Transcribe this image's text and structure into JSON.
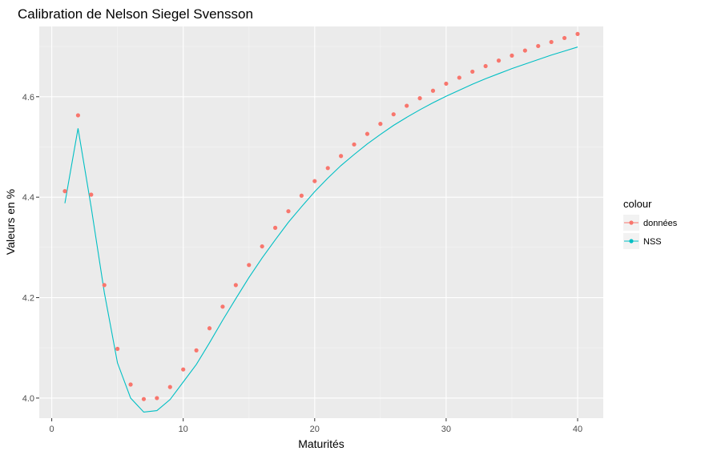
{
  "chart_data": {
    "type": "line",
    "title": "Calibration de Nelson Siegel Svensson",
    "xlabel": "Maturités",
    "ylabel": "Valeurs en %",
    "xlim": [
      -0.95,
      41.95
    ],
    "ylim": [
      3.96,
      4.74
    ],
    "x_ticks": [
      0,
      10,
      20,
      30,
      40
    ],
    "x_tick_labels": [
      "0",
      "10",
      "20",
      "30",
      "40"
    ],
    "y_ticks": [
      4.0,
      4.2,
      4.4,
      4.6
    ],
    "y_tick_labels": [
      "4.0",
      "4.2",
      "4.4",
      "4.6"
    ],
    "grid": true,
    "legend": {
      "title": "colour",
      "placement": "right"
    },
    "x": [
      1,
      2,
      3,
      4,
      5,
      6,
      7,
      8,
      9,
      10,
      11,
      12,
      13,
      14,
      15,
      16,
      17,
      18,
      19,
      20,
      21,
      22,
      23,
      24,
      25,
      26,
      27,
      28,
      29,
      30,
      31,
      32,
      33,
      34,
      35,
      36,
      37,
      38,
      39,
      40
    ],
    "series": [
      {
        "name": "données",
        "style": "points",
        "color": "#F8766D",
        "values": [
          4.412,
          4.563,
          4.405,
          4.225,
          4.098,
          4.027,
          3.998,
          4.0,
          4.022,
          4.057,
          4.095,
          4.139,
          4.182,
          4.225,
          4.265,
          4.302,
          4.339,
          4.372,
          4.403,
          4.432,
          4.458,
          4.482,
          4.505,
          4.526,
          4.546,
          4.565,
          4.582,
          4.597,
          4.612,
          4.626,
          4.638,
          4.65,
          4.661,
          4.672,
          4.682,
          4.692,
          4.701,
          4.709,
          4.717,
          4.725
        ]
      },
      {
        "name": "NSS",
        "style": "line",
        "color": "#00BFC4",
        "values": [
          4.388,
          4.537,
          4.38,
          4.21,
          4.07,
          4.0,
          3.972,
          3.975,
          3.997,
          4.032,
          4.067,
          4.11,
          4.155,
          4.198,
          4.24,
          4.279,
          4.315,
          4.35,
          4.381,
          4.411,
          4.438,
          4.463,
          4.485,
          4.506,
          4.525,
          4.543,
          4.559,
          4.574,
          4.588,
          4.601,
          4.613,
          4.625,
          4.636,
          4.646,
          4.656,
          4.665,
          4.674,
          4.683,
          4.691,
          4.699
        ]
      }
    ]
  }
}
